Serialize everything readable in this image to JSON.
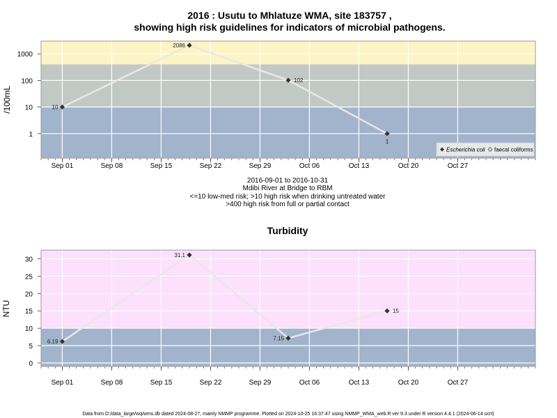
{
  "title_line1": "2016 : Usutu to Mhlatuze WMA, site 183757 ,",
  "title_line2": "showing high risk guidelines for indicators of microbial pathogens.",
  "subtitle_lines": [
    "2016-09-01 to 2016-10-31",
    "Mdibi River at Bridge to RBM",
    "<=10 low-med risk; >10 high risk when drinking untreated water",
    ">400 high risk from full or partial contact"
  ],
  "footer": "Data from D:/data_large/wq/wms.db dated 2024-08-27, mainly NMMP programme. Plotted on 2024-10-25 16:37:47 using NMMP_WMA_web.R ver 9.3 under R version 4.4.1 (2024-06-14 ucrt)",
  "colors": {
    "band_low": "#a2b4cc",
    "band_high": "#c2c9c5",
    "band_contact": "#fcf4c4",
    "band_turb_high": "#fce0fc",
    "line": "#e8e8e8",
    "point": "#333333"
  },
  "chart_data": [
    {
      "type": "line",
      "title": "",
      "ylabel": "/100mL",
      "yscale": "log",
      "ylim": [
        0.12,
        3000
      ],
      "xlim": [
        "2016-08-29",
        "2016-11-07"
      ],
      "x_ticks": [
        "Sep 01",
        "Sep 08",
        "Sep 15",
        "Sep 22",
        "Sep 29",
        "Oct 06",
        "Oct 13",
        "Oct 20",
        "Oct 27"
      ],
      "y_ticks": [
        "1",
        "10",
        "100",
        "1000"
      ],
      "bands": [
        {
          "from": 0.12,
          "to": 10,
          "color": "#a2b4cc"
        },
        {
          "from": 10,
          "to": 400,
          "color": "#c2c9c5"
        },
        {
          "from": 400,
          "to": 3000,
          "color": "#fcf4c4"
        }
      ],
      "series": [
        {
          "name": "Escherichia coli",
          "x": [
            "2016-09-01",
            "2016-09-19",
            "2016-10-03",
            "2016-10-17"
          ],
          "y": [
            10,
            2086,
            102,
            1
          ],
          "labels": [
            "10",
            "2086",
            "102",
            "1"
          ]
        }
      ],
      "legend": {
        "position": "bottom-right",
        "entries": [
          "Escherichia coli",
          "faecal coliforms"
        ]
      }
    },
    {
      "type": "line",
      "title": "Turbidity",
      "ylabel": "NTU",
      "yscale": "linear",
      "ylim": [
        -1,
        32.5
      ],
      "xlim": [
        "2016-08-29",
        "2016-11-07"
      ],
      "x_ticks": [
        "Sep 01",
        "Sep 08",
        "Sep 15",
        "Sep 22",
        "Sep 29",
        "Oct 06",
        "Oct 13",
        "Oct 20",
        "Oct 27"
      ],
      "y_ticks": [
        "0",
        "5",
        "10",
        "15",
        "20",
        "25",
        "30"
      ],
      "bands": [
        {
          "from": -1,
          "to": 10,
          "color": "#a2b4cc"
        },
        {
          "from": 10,
          "to": 32.5,
          "color": "#fce0fc"
        }
      ],
      "series": [
        {
          "name": "Turbidity",
          "x": [
            "2016-09-01",
            "2016-09-19",
            "2016-10-03",
            "2016-10-17"
          ],
          "y": [
            6.19,
            31.1,
            7.15,
            15
          ],
          "labels": [
            "6.19",
            "31.1",
            "7.15",
            "15"
          ]
        }
      ]
    }
  ]
}
